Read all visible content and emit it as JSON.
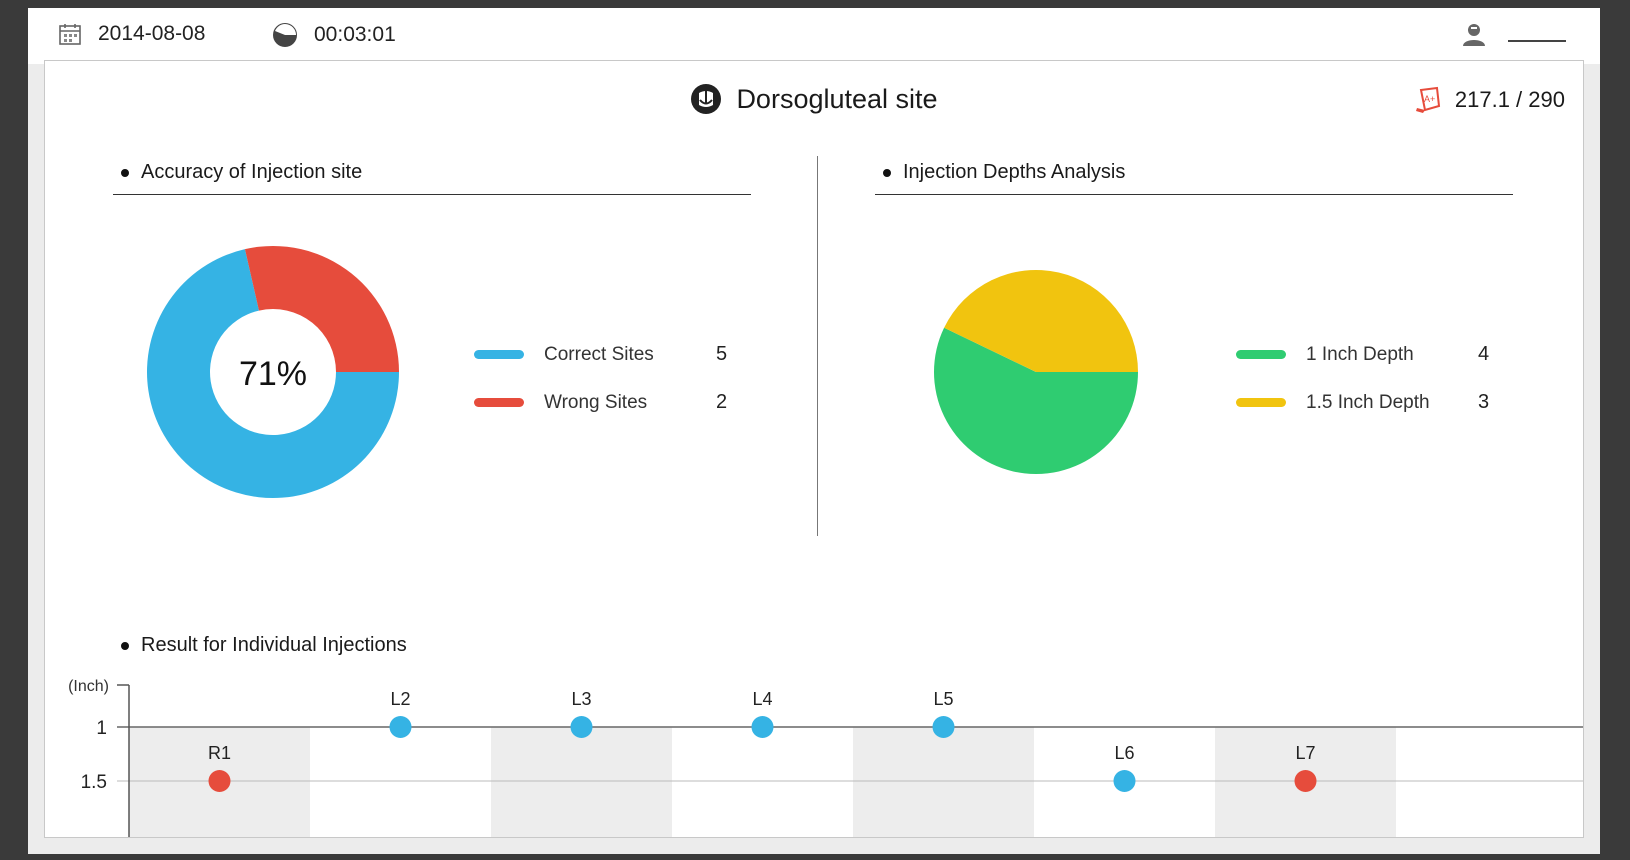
{
  "topbar": {
    "date": "2014-08-08",
    "timer": "00:03:01",
    "user_name": "",
    "icons": [
      "calendar-icon",
      "timer-icon",
      "user-icon"
    ]
  },
  "header": {
    "title": "Dorsogluteal site",
    "title_icon": "site-icon",
    "score": "217.1 / 290",
    "score_icon": "grade-icon"
  },
  "accuracy": {
    "heading": "Accuracy of Injection site",
    "center_label": "71%",
    "legend": [
      {
        "label": "Correct Sites",
        "count": "5",
        "color": "#35b3e4"
      },
      {
        "label": "Wrong Sites",
        "count": "2",
        "color": "#e64c3c"
      }
    ]
  },
  "depths": {
    "heading": "Injection Depths Analysis",
    "legend": [
      {
        "label": "1 Inch Depth",
        "count": "4",
        "color": "#2fcc71"
      },
      {
        "label": "1.5 Inch Depth",
        "count": "3",
        "color": "#f1c40f"
      }
    ]
  },
  "results": {
    "heading": "Result for Individual Injections"
  },
  "chart_data": [
    {
      "type": "pie",
      "variant": "donut",
      "title": "Accuracy of Injection site",
      "center_text": "71%",
      "slices": [
        {
          "label": "Correct Sites",
          "value": 5,
          "color": "#35b3e4"
        },
        {
          "label": "Wrong Sites",
          "value": 2,
          "color": "#e64c3c"
        }
      ]
    },
    {
      "type": "pie",
      "title": "Injection Depths Analysis",
      "slices": [
        {
          "label": "1 Inch Depth",
          "value": 4,
          "color": "#2fcc71"
        },
        {
          "label": "1.5 Inch Depth",
          "value": 3,
          "color": "#f1c40f"
        }
      ]
    },
    {
      "type": "scatter",
      "title": "Result for Individual Injections",
      "ylabel": "(Inch)",
      "y_ticks": [
        "1",
        "1.5"
      ],
      "y_tick_values": [
        1,
        1.5
      ],
      "y_inverted": true,
      "grid": true,
      "categories": [
        "R1",
        "L2",
        "L3",
        "L4",
        "L5",
        "L6",
        "L7"
      ],
      "points": [
        {
          "label": "R1",
          "depth": 1.5,
          "color": "#e64c3c"
        },
        {
          "label": "L2",
          "depth": 1,
          "color": "#35b3e4"
        },
        {
          "label": "L3",
          "depth": 1,
          "color": "#35b3e4"
        },
        {
          "label": "L4",
          "depth": 1,
          "color": "#35b3e4"
        },
        {
          "label": "L5",
          "depth": 1,
          "color": "#35b3e4"
        },
        {
          "label": "L6",
          "depth": 1.5,
          "color": "#35b3e4"
        },
        {
          "label": "L7",
          "depth": 1.5,
          "color": "#e64c3c"
        }
      ]
    }
  ]
}
